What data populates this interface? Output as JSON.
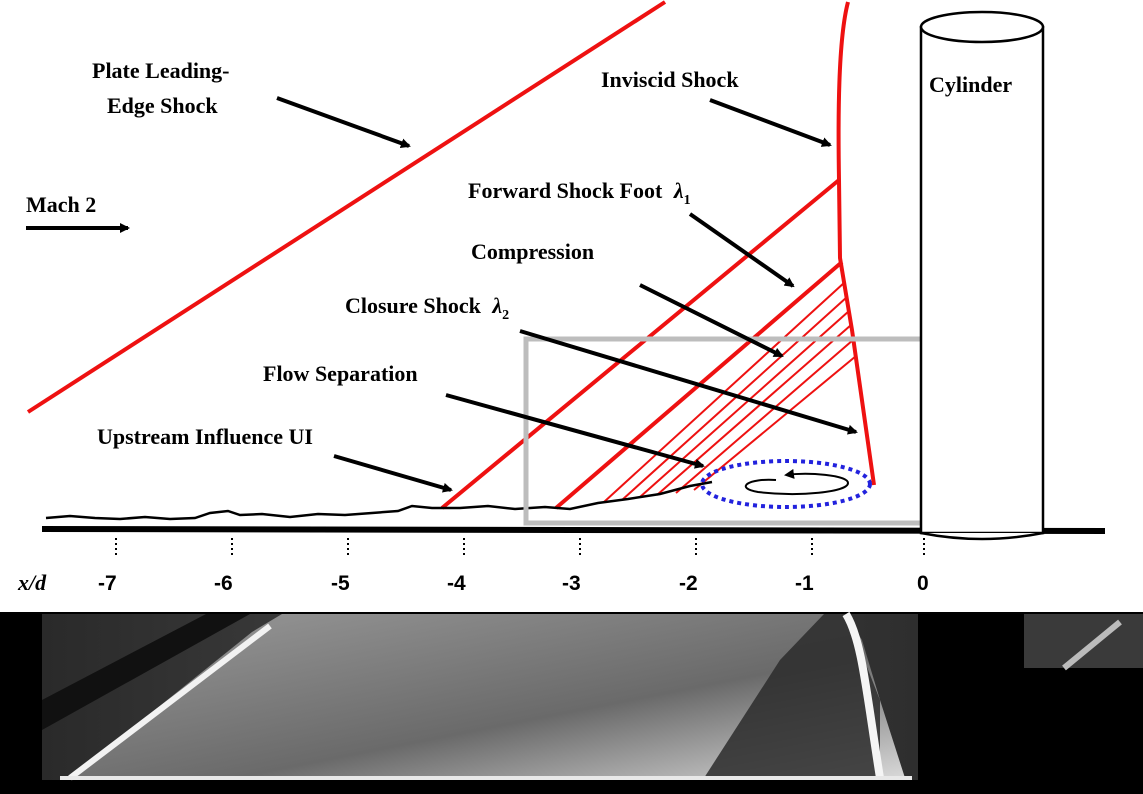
{
  "labels": {
    "plate_shock_line1": "Plate Leading-",
    "plate_shock_line2": "Edge Shock",
    "mach": "Mach 2",
    "inviscid_shock": "Inviscid Shock",
    "cylinder": "Cylinder",
    "forward_foot": "Forward Shock Foot",
    "forward_symbol": "λ",
    "forward_sub": "1",
    "compression": "Compression",
    "closure_shock": "Closure Shock",
    "closure_symbol": "λ",
    "closure_sub": "2",
    "flow_separation": "Flow Separation",
    "upstream_influence": "Upstream Influence  UI"
  },
  "axis": {
    "label": "x/d",
    "ticks": [
      "-7",
      "-6",
      "-5",
      "-4",
      "-3",
      "-2",
      "-1",
      "0"
    ]
  },
  "colors": {
    "shock": "#ee1111",
    "separation": "#2222dd",
    "box": "#bdbdbd",
    "ink": "#000000"
  }
}
